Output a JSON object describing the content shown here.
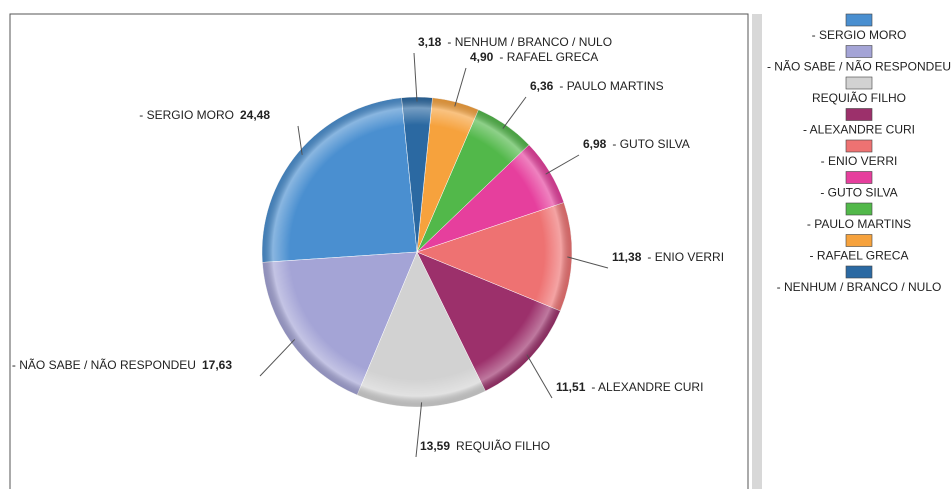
{
  "chart_data": {
    "type": "pie",
    "categories": [
      "- SERGIO MORO",
      "- NÃO SABE / NÃO RESPONDEU",
      "REQUIÃO FILHO",
      "- ALEXANDRE CURI",
      "- ENIO VERRI",
      "- GUTO SILVA",
      "- PAULO MARTINS",
      "- RAFAEL GRECA",
      "- NENHUM / BRANCO / NULO"
    ],
    "values": [
      24.48,
      17.63,
      13.59,
      11.51,
      11.38,
      6.98,
      6.36,
      4.9,
      3.18
    ],
    "value_labels": [
      "24,48",
      "17,63",
      "13,59",
      "11,51",
      "11,38",
      "6,98",
      "6,36",
      "4,90",
      "3,18"
    ],
    "colors": [
      "#4a8fd0",
      "#a4a4d6",
      "#d2d2d2",
      "#9c306b",
      "#ee7272",
      "#e63f9d",
      "#52b84a",
      "#f6a23d",
      "#2b69a2"
    ],
    "legend": "right"
  }
}
